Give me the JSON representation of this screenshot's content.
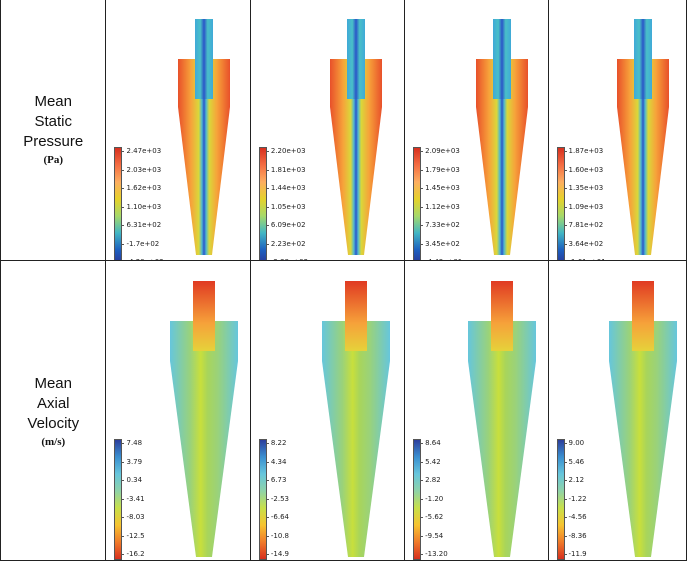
{
  "rows": [
    {
      "id": "pressure",
      "label_lines": [
        "Mean",
        "Static",
        "Pressure"
      ],
      "unit": "(Pa)",
      "colormap": "pressure",
      "panels": [
        {
          "legend": [
            "2.47e+03",
            "2.03e+03",
            "1.62e+03",
            "1.10e+03",
            "6.31e+02",
            "-1.7e+02",
            "-4.20e+02"
          ]
        },
        {
          "legend": [
            "2.20e+03",
            "1.81e+03",
            "1.44e+03",
            "1.05e+03",
            "6.09e+02",
            "2.23e+02",
            "-2.38e+02"
          ]
        },
        {
          "legend": [
            "2.09e+03",
            "1.79e+03",
            "1.45e+03",
            "1.12e+03",
            "7.33e+02",
            "3.45e+02",
            "-4.43e+01"
          ]
        },
        {
          "legend": [
            "1.87e+03",
            "1.60e+03",
            "1.35e+03",
            "1.09e+03",
            "7.81e+02",
            "3.64e+02",
            "-1.61e+01"
          ]
        }
      ]
    },
    {
      "id": "axial",
      "label_lines": [
        "Mean",
        "Axial",
        "Velocity"
      ],
      "unit": "(m/s)",
      "colormap": "axial",
      "panels": [
        {
          "legend": [
            "7.48",
            "3.79",
            "0.34",
            "-3.41",
            "-8.03",
            "-12.5",
            "-16.2"
          ]
        },
        {
          "legend": [
            "8.22",
            "4.34",
            "6.73",
            "-2.53",
            "-6.64",
            "-10.8",
            "-14.9"
          ]
        },
        {
          "legend": [
            "8.64",
            "5.42",
            "2.82",
            "-1.20",
            "-5.62",
            "-9.54",
            "-13.20"
          ]
        },
        {
          "legend": [
            "9.00",
            "5.46",
            "2.12",
            "-1.22",
            "-4.56",
            "-8.36",
            "-11.9"
          ]
        }
      ]
    }
  ],
  "colors": {
    "pressure_scale": [
      "#d7301f",
      "#f46d43",
      "#fdae61",
      "#e6d22a",
      "#a6d96a",
      "#41b6c4",
      "#1d5fbf",
      "#2c2c8c"
    ],
    "axial_scale": [
      "#2c3e9c",
      "#3a8fd0",
      "#67c6dc",
      "#8fd3a8",
      "#c8e04a",
      "#f6c431",
      "#f07b2a",
      "#d7301f"
    ],
    "border": "#222222"
  }
}
